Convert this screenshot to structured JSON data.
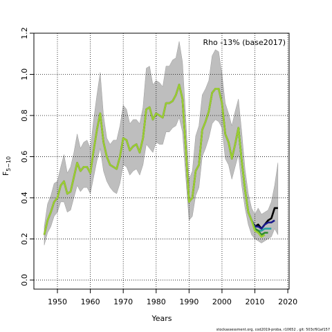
{
  "chart_data": {
    "type": "line",
    "annotation": "Rho -13% (base2017)",
    "xlabel": "Years",
    "ylabel": {
      "text": "F",
      "subscript": "5−10"
    },
    "footer": "stockassessment.org, cod2019-proba, r10652 , git: 503cf91af157",
    "xlim": [
      1942.85,
      2020.4
    ],
    "ylim": [
      -0.044,
      1.2
    ],
    "xticks": [
      1950,
      1960,
      1970,
      1980,
      1990,
      2000,
      2010,
      2020
    ],
    "yticks": [
      {
        "value": 0,
        "label": "0.0"
      },
      0.2,
      0.4,
      0.6,
      0.8,
      {
        "value": 1,
        "label": "1.0"
      },
      1.2
    ],
    "grid": true,
    "x": [
      1946,
      1947,
      1948,
      1949,
      1950,
      1951,
      1952,
      1953,
      1954,
      1955,
      1956,
      1957,
      1958,
      1959,
      1960,
      1961,
      1962,
      1963,
      1964,
      1965,
      1966,
      1967,
      1968,
      1969,
      1970,
      1971,
      1972,
      1973,
      1974,
      1975,
      1976,
      1977,
      1978,
      1979,
      1980,
      1981,
      1982,
      1983,
      1984,
      1985,
      1986,
      1987,
      1988,
      1989,
      1990,
      1991,
      1992,
      1993,
      1994,
      1995,
      1996,
      1997,
      1998,
      1999,
      2000,
      2001,
      2002,
      2003,
      2004,
      2005,
      2006,
      2007,
      2008,
      2009,
      2010,
      2011,
      2012,
      2013,
      2014,
      2015,
      2016,
      2017
    ],
    "band": {
      "color": "#bebebe",
      "upper": [
        0.26,
        0.37,
        0.41,
        0.47,
        0.48,
        0.55,
        0.61,
        0.52,
        0.55,
        0.62,
        0.71,
        0.64,
        0.67,
        0.68,
        0.64,
        0.78,
        0.9,
        1.01,
        0.8,
        0.69,
        0.66,
        0.68,
        0.68,
        0.75,
        0.85,
        0.83,
        0.76,
        0.78,
        0.78,
        0.76,
        0.84,
        1.03,
        1.04,
        0.95,
        0.97,
        0.96,
        0.94,
        1.04,
        1.04,
        1.07,
        1.08,
        1.16,
        1.06,
        0.79,
        0.49,
        0.53,
        0.7,
        0.75,
        0.9,
        0.93,
        0.97,
        1.09,
        1.12,
        1.11,
        1.0,
        0.86,
        0.81,
        0.75,
        0.82,
        0.88,
        0.72,
        0.54,
        0.42,
        0.35,
        0.32,
        0.35,
        0.32,
        0.33,
        0.34,
        0.38,
        0.46,
        0.57
      ],
      "lower": [
        0.17,
        0.23,
        0.26,
        0.31,
        0.33,
        0.38,
        0.38,
        0.33,
        0.34,
        0.4,
        0.46,
        0.43,
        0.45,
        0.45,
        0.42,
        0.5,
        0.58,
        0.64,
        0.53,
        0.48,
        0.45,
        0.43,
        0.42,
        0.47,
        0.56,
        0.55,
        0.51,
        0.53,
        0.54,
        0.51,
        0.56,
        0.66,
        0.64,
        0.62,
        0.67,
        0.66,
        0.66,
        0.72,
        0.72,
        0.74,
        0.75,
        0.79,
        0.72,
        0.5,
        0.29,
        0.31,
        0.41,
        0.45,
        0.6,
        0.64,
        0.69,
        0.76,
        0.78,
        0.77,
        0.74,
        0.59,
        0.56,
        0.49,
        0.55,
        0.61,
        0.46,
        0.35,
        0.27,
        0.22,
        0.2,
        0.19,
        0.18,
        0.19,
        0.2,
        0.21,
        0.25,
        0.22
      ]
    },
    "series": [
      {
        "color": "#000000",
        "values": [
          0.22,
          0.29,
          0.33,
          0.38,
          0.4,
          0.46,
          0.48,
          0.42,
          0.43,
          0.5,
          0.57,
          0.53,
          0.55,
          0.55,
          0.52,
          0.63,
          0.73,
          0.81,
          0.67,
          0.6,
          0.56,
          0.55,
          0.54,
          0.6,
          0.69,
          0.68,
          0.63,
          0.65,
          0.66,
          0.62,
          0.69,
          0.83,
          0.84,
          0.78,
          0.81,
          0.8,
          0.79,
          0.86,
          0.86,
          0.87,
          0.9,
          0.95,
          0.88,
          0.64,
          0.38,
          0.4,
          0.53,
          0.56,
          0.73,
          0.77,
          0.82,
          0.91,
          0.93,
          0.93,
          0.86,
          0.71,
          0.67,
          0.59,
          0.66,
          0.74,
          0.58,
          0.44,
          0.33,
          0.29,
          0.26,
          0.27,
          0.25,
          0.27,
          0.29,
          0.3,
          0.35,
          0.35
        ]
      },
      {
        "color": "#1a1a8c",
        "x": [
          2005,
          2006,
          2007,
          2008,
          2009,
          2010,
          2011,
          2012,
          2013,
          2014,
          2015,
          2016
        ],
        "values": [
          0.74,
          0.58,
          0.44,
          0.33,
          0.29,
          0.26,
          0.26,
          0.25,
          0.27,
          0.28,
          0.28,
          0.29
        ]
      },
      {
        "color": "#2aa3a3",
        "x": [
          2005,
          2006,
          2007,
          2008,
          2009,
          2010,
          2011,
          2012,
          2013,
          2014,
          2015
        ],
        "values": [
          0.74,
          0.58,
          0.44,
          0.33,
          0.29,
          0.25,
          0.24,
          0.24,
          0.25,
          0.25,
          0.25
        ]
      },
      {
        "color": "#2e8b2e",
        "x": [
          2005,
          2006,
          2007,
          2008,
          2009,
          2010,
          2011,
          2012,
          2013,
          2014
        ],
        "values": [
          0.74,
          0.58,
          0.44,
          0.33,
          0.29,
          0.25,
          0.24,
          0.22,
          0.23,
          0.23
        ]
      },
      {
        "color": "#9acd32",
        "x": [
          1946,
          1947,
          1948,
          1949,
          1950,
          1951,
          1952,
          1953,
          1954,
          1955,
          1956,
          1957,
          1958,
          1959,
          1960,
          1961,
          1962,
          1963,
          1964,
          1965,
          1966,
          1967,
          1968,
          1969,
          1970,
          1971,
          1972,
          1973,
          1974,
          1975,
          1976,
          1977,
          1978,
          1979,
          1980,
          1981,
          1982,
          1983,
          1984,
          1985,
          1986,
          1987,
          1988,
          1989,
          1990,
          1991,
          1992,
          1993,
          1994,
          1995,
          1996,
          1997,
          1998,
          1999,
          2000,
          2001,
          2002,
          2003,
          2004,
          2005,
          2006,
          2007,
          2008,
          2009,
          2010,
          2011,
          2012,
          2013
        ],
        "values": [
          0.22,
          0.29,
          0.33,
          0.38,
          0.4,
          0.46,
          0.48,
          0.42,
          0.43,
          0.5,
          0.57,
          0.53,
          0.55,
          0.55,
          0.52,
          0.63,
          0.73,
          0.81,
          0.67,
          0.6,
          0.56,
          0.55,
          0.54,
          0.6,
          0.69,
          0.68,
          0.63,
          0.65,
          0.66,
          0.62,
          0.69,
          0.83,
          0.84,
          0.78,
          0.81,
          0.8,
          0.79,
          0.86,
          0.86,
          0.87,
          0.9,
          0.95,
          0.88,
          0.64,
          0.38,
          0.4,
          0.53,
          0.56,
          0.73,
          0.77,
          0.82,
          0.91,
          0.93,
          0.93,
          0.86,
          0.71,
          0.67,
          0.59,
          0.66,
          0.74,
          0.58,
          0.44,
          0.33,
          0.29,
          0.24,
          0.23,
          0.21,
          0.22
        ]
      }
    ]
  }
}
